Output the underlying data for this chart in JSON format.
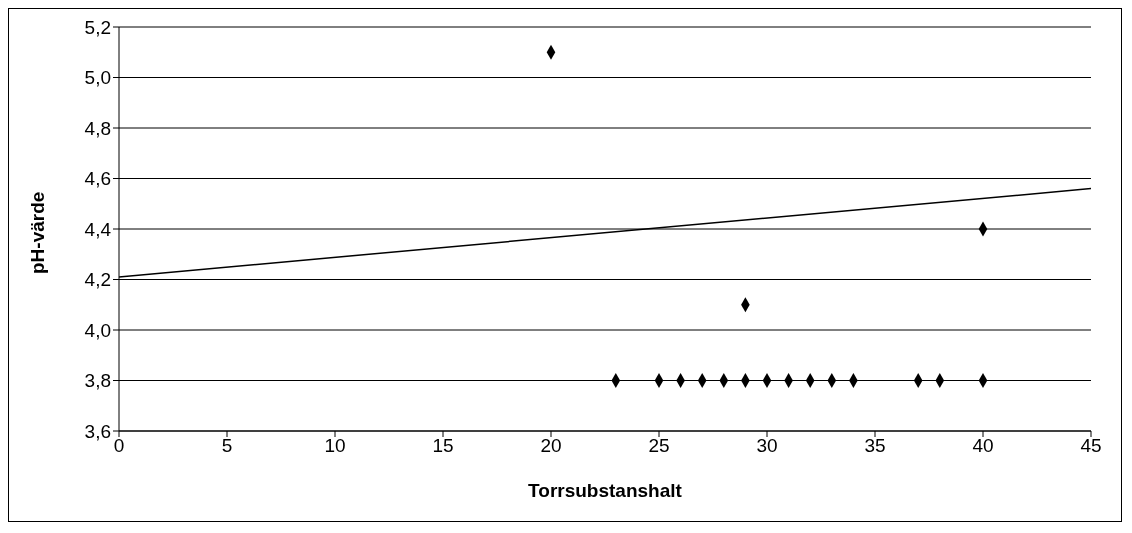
{
  "chart_data": {
    "type": "scatter",
    "xlabel": "Torrsubstanshalt",
    "ylabel": "pH-värde",
    "xlim": [
      0,
      45
    ],
    "xticks": [
      0,
      5,
      10,
      15,
      20,
      25,
      30,
      35,
      40,
      45
    ],
    "ylim": [
      3.6,
      5.2
    ],
    "yticks": [
      {
        "value": 3.6,
        "label": "3,6"
      },
      {
        "value": 3.8,
        "label": "3,8"
      },
      {
        "value": 4.0,
        "label": "4,0"
      },
      {
        "value": 4.2,
        "label": "4,2"
      },
      {
        "value": 4.4,
        "label": "4,4"
      },
      {
        "value": 4.6,
        "label": "4,6"
      },
      {
        "value": 4.8,
        "label": "4,8"
      },
      {
        "value": 5.0,
        "label": "5,0"
      },
      {
        "value": 5.2,
        "label": "5,2"
      }
    ],
    "grid": "y",
    "line_style": "solid",
    "series": [
      {
        "marker": "diamond",
        "color": "#000000",
        "x": [
          20,
          23,
          25,
          26,
          27,
          28,
          29,
          29,
          30,
          31,
          32,
          33,
          34,
          37,
          38,
          40,
          40
        ],
        "values": [
          5.1,
          3.8,
          3.8,
          3.8,
          3.8,
          3.8,
          3.8,
          4.1,
          3.8,
          3.8,
          3.8,
          3.8,
          3.8,
          3.8,
          3.8,
          3.8,
          4.4
        ]
      },
      {
        "type": "line",
        "marker": "none",
        "color": "#000000",
        "x": [
          0,
          45
        ],
        "values": [
          4.21,
          4.56
        ]
      }
    ]
  }
}
